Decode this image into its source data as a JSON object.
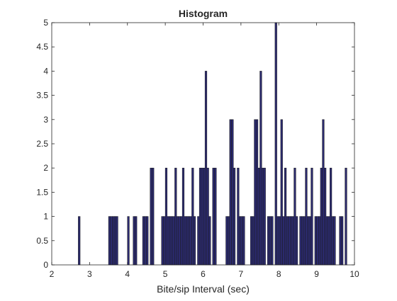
{
  "chart_data": {
    "type": "bar",
    "title": "Histogram",
    "xlabel": "Bite/sip Interval (sec)",
    "ylabel": "",
    "xlim": [
      2,
      10
    ],
    "ylim": [
      0,
      5
    ],
    "xticks": [
      2,
      3,
      4,
      5,
      6,
      7,
      8,
      9,
      10
    ],
    "yticks": [
      0,
      0.5,
      1,
      1.5,
      2,
      2.5,
      3,
      3.5,
      4,
      4.5,
      5
    ],
    "grid": false,
    "bar_color": "#2b2a6e",
    "edge_color": "#1a1a1a",
    "bin_width": 0.05,
    "series": [
      {
        "bins": [
          {
            "x": 2.725,
            "count": 1
          },
          {
            "x": 3.525,
            "count": 1
          },
          {
            "x": 3.575,
            "count": 1
          },
          {
            "x": 3.625,
            "count": 1
          },
          {
            "x": 3.675,
            "count": 1
          },
          {
            "x": 3.725,
            "count": 1
          },
          {
            "x": 4.025,
            "count": 1
          },
          {
            "x": 4.175,
            "count": 1
          },
          {
            "x": 4.225,
            "count": 1
          },
          {
            "x": 4.425,
            "count": 1
          },
          {
            "x": 4.475,
            "count": 1
          },
          {
            "x": 4.525,
            "count": 1
          },
          {
            "x": 4.625,
            "count": 2
          },
          {
            "x": 4.675,
            "count": 2
          },
          {
            "x": 4.925,
            "count": 1
          },
          {
            "x": 4.975,
            "count": 1
          },
          {
            "x": 5.025,
            "count": 2
          },
          {
            "x": 5.075,
            "count": 1
          },
          {
            "x": 5.125,
            "count": 1
          },
          {
            "x": 5.175,
            "count": 1
          },
          {
            "x": 5.225,
            "count": 1
          },
          {
            "x": 5.275,
            "count": 2
          },
          {
            "x": 5.325,
            "count": 1
          },
          {
            "x": 5.375,
            "count": 1
          },
          {
            "x": 5.425,
            "count": 1
          },
          {
            "x": 5.475,
            "count": 2
          },
          {
            "x": 5.525,
            "count": 1
          },
          {
            "x": 5.575,
            "count": 1
          },
          {
            "x": 5.625,
            "count": 1
          },
          {
            "x": 5.675,
            "count": 1
          },
          {
            "x": 5.725,
            "count": 2
          },
          {
            "x": 5.775,
            "count": 1
          },
          {
            "x": 5.875,
            "count": 1
          },
          {
            "x": 5.925,
            "count": 2
          },
          {
            "x": 5.975,
            "count": 2
          },
          {
            "x": 6.025,
            "count": 2
          },
          {
            "x": 6.075,
            "count": 4
          },
          {
            "x": 6.125,
            "count": 2
          },
          {
            "x": 6.175,
            "count": 1
          },
          {
            "x": 6.275,
            "count": 2
          },
          {
            "x": 6.325,
            "count": 2
          },
          {
            "x": 6.625,
            "count": 1
          },
          {
            "x": 6.675,
            "count": 1
          },
          {
            "x": 6.725,
            "count": 3
          },
          {
            "x": 6.775,
            "count": 3
          },
          {
            "x": 6.825,
            "count": 2
          },
          {
            "x": 6.925,
            "count": 2
          },
          {
            "x": 6.975,
            "count": 1
          },
          {
            "x": 7.025,
            "count": 1
          },
          {
            "x": 7.075,
            "count": 1
          },
          {
            "x": 7.275,
            "count": 1
          },
          {
            "x": 7.325,
            "count": 1
          },
          {
            "x": 7.375,
            "count": 3
          },
          {
            "x": 7.425,
            "count": 3
          },
          {
            "x": 7.475,
            "count": 2
          },
          {
            "x": 7.525,
            "count": 4
          },
          {
            "x": 7.575,
            "count": 2
          },
          {
            "x": 7.625,
            "count": 2
          },
          {
            "x": 7.725,
            "count": 1
          },
          {
            "x": 7.775,
            "count": 1
          },
          {
            "x": 7.825,
            "count": 1
          },
          {
            "x": 7.925,
            "count": 5
          },
          {
            "x": 7.975,
            "count": 1
          },
          {
            "x": 8.025,
            "count": 1
          },
          {
            "x": 8.075,
            "count": 3
          },
          {
            "x": 8.125,
            "count": 1
          },
          {
            "x": 8.175,
            "count": 2
          },
          {
            "x": 8.225,
            "count": 1
          },
          {
            "x": 8.275,
            "count": 1
          },
          {
            "x": 8.325,
            "count": 1
          },
          {
            "x": 8.375,
            "count": 1
          },
          {
            "x": 8.425,
            "count": 2
          },
          {
            "x": 8.475,
            "count": 1
          },
          {
            "x": 8.575,
            "count": 1
          },
          {
            "x": 8.625,
            "count": 1
          },
          {
            "x": 8.675,
            "count": 1
          },
          {
            "x": 8.725,
            "count": 2
          },
          {
            "x": 8.775,
            "count": 1
          },
          {
            "x": 8.825,
            "count": 1
          },
          {
            "x": 8.875,
            "count": 2
          },
          {
            "x": 8.975,
            "count": 1
          },
          {
            "x": 9.025,
            "count": 1
          },
          {
            "x": 9.075,
            "count": 1
          },
          {
            "x": 9.125,
            "count": 2
          },
          {
            "x": 9.175,
            "count": 3
          },
          {
            "x": 9.225,
            "count": 2
          },
          {
            "x": 9.275,
            "count": 1
          },
          {
            "x": 9.325,
            "count": 1
          },
          {
            "x": 9.375,
            "count": 2
          },
          {
            "x": 9.425,
            "count": 1
          },
          {
            "x": 9.475,
            "count": 1
          },
          {
            "x": 9.625,
            "count": 1
          },
          {
            "x": 9.675,
            "count": 1
          },
          {
            "x": 9.775,
            "count": 2
          }
        ]
      }
    ]
  }
}
